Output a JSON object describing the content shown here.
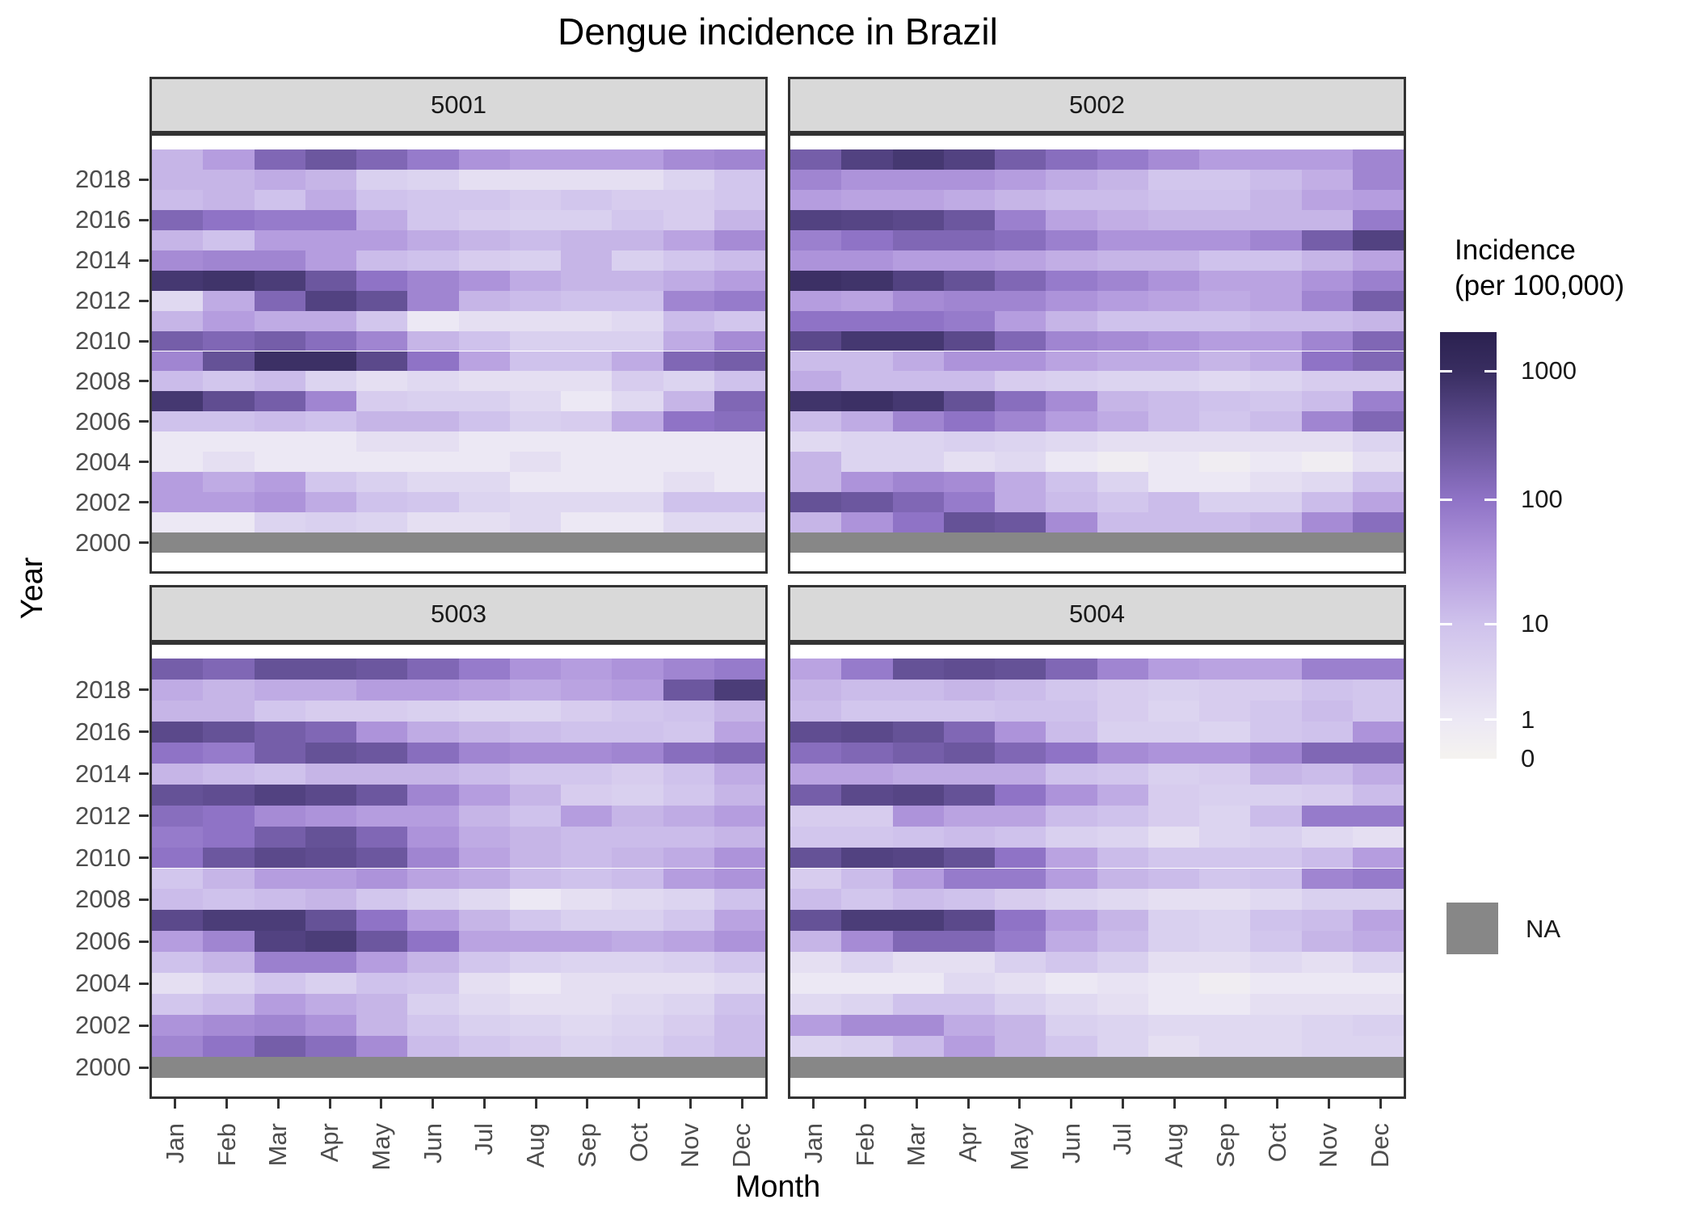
{
  "title": "Dengue incidence in Brazil",
  "axes": {
    "x_title": "Month",
    "y_title": "Year",
    "months": [
      "Jan",
      "Feb",
      "Mar",
      "Apr",
      "May",
      "Jun",
      "Jul",
      "Aug",
      "Sep",
      "Oct",
      "Nov",
      "Dec"
    ],
    "year_tick_labels": [
      "2018",
      "2016",
      "2014",
      "2012",
      "2010",
      "2008",
      "2006",
      "2004",
      "2002",
      "2000"
    ]
  },
  "legend": {
    "title_line1": "Incidence",
    "title_line2": "(per 100,000)",
    "tick_labels": [
      "1000",
      "100",
      "10",
      "1",
      "0"
    ],
    "tick_values": [
      1000,
      100,
      10,
      1,
      0
    ],
    "na_label": "NA"
  },
  "colors": {
    "na": "#878787",
    "strip_bg": "#d9d9d9",
    "panel_border": "#333333",
    "axis_text": "#4d4d4d",
    "scale_stops": [
      [
        0.0,
        "#f5f3f0"
      ],
      [
        0.0912,
        "#ece8f4"
      ],
      [
        0.3155,
        "#cfc2ec"
      ],
      [
        0.47,
        "#b298dd"
      ],
      [
        0.6072,
        "#8f73c6"
      ],
      [
        0.78,
        "#5d4b8e"
      ],
      [
        0.9089,
        "#382d60"
      ],
      [
        1.0,
        "#2b2150"
      ]
    ]
  },
  "chart_data": {
    "type": "heatmap",
    "title": "Dengue incidence in Brazil",
    "xlabel": "Month",
    "ylabel": "Year",
    "x": [
      "Jan",
      "Feb",
      "Mar",
      "Apr",
      "May",
      "Jun",
      "Jul",
      "Aug",
      "Sep",
      "Oct",
      "Nov",
      "Dec"
    ],
    "years": [
      2019,
      2018,
      2017,
      2016,
      2015,
      2014,
      2013,
      2012,
      2011,
      2010,
      2009,
      2008,
      2007,
      2006,
      2005,
      2004,
      2003,
      2002,
      2001,
      2000
    ],
    "scale": {
      "transform": "log10(x+1)",
      "vmax": 2000,
      "legend_ticks": [
        1000,
        100,
        10,
        1,
        0
      ],
      "na_year": 2000
    },
    "panels": [
      {
        "id": "5001",
        "values": [
          [
            15,
            30,
            150,
            250,
            150,
            80,
            40,
            30,
            30,
            30,
            50,
            60
          ],
          [
            15,
            15,
            20,
            15,
            5,
            4,
            2,
            2,
            2,
            2,
            4,
            8
          ],
          [
            12,
            15,
            10,
            20,
            10,
            8,
            8,
            6,
            8,
            6,
            6,
            8
          ],
          [
            150,
            100,
            80,
            80,
            20,
            8,
            6,
            5,
            5,
            8,
            6,
            15
          ],
          [
            15,
            10,
            30,
            30,
            30,
            20,
            15,
            12,
            15,
            15,
            25,
            50
          ],
          [
            50,
            60,
            60,
            30,
            12,
            10,
            6,
            5,
            15,
            5,
            8,
            12
          ],
          [
            700,
            800,
            600,
            250,
            100,
            60,
            40,
            20,
            15,
            15,
            20,
            30
          ],
          [
            3,
            20,
            150,
            500,
            300,
            60,
            15,
            12,
            10,
            10,
            60,
            80
          ],
          [
            15,
            30,
            20,
            20,
            8,
            1,
            2,
            2,
            2,
            3,
            12,
            8
          ],
          [
            200,
            150,
            200,
            120,
            60,
            15,
            10,
            5,
            5,
            5,
            20,
            50
          ],
          [
            60,
            300,
            900,
            900,
            400,
            100,
            25,
            10,
            10,
            20,
            150,
            200
          ],
          [
            12,
            8,
            12,
            4,
            2,
            3,
            2,
            2,
            2,
            6,
            4,
            10
          ],
          [
            700,
            350,
            200,
            60,
            6,
            5,
            5,
            3,
            1,
            3,
            15,
            150
          ],
          [
            10,
            10,
            12,
            10,
            15,
            15,
            10,
            5,
            6,
            20,
            100,
            120
          ],
          [
            1,
            1,
            1,
            1,
            2,
            2,
            1,
            1,
            1,
            1,
            1,
            1
          ],
          [
            1,
            2,
            1,
            1,
            1,
            1,
            1,
            2,
            1,
            1,
            1,
            1
          ],
          [
            30,
            20,
            30,
            8,
            5,
            3,
            3,
            1,
            1,
            1,
            2,
            1
          ],
          [
            30,
            30,
            40,
            20,
            10,
            8,
            4,
            3,
            3,
            3,
            10,
            10
          ],
          [
            1,
            1,
            4,
            5,
            4,
            2,
            2,
            3,
            1,
            1,
            3,
            3
          ],
          [
            null,
            null,
            null,
            null,
            null,
            null,
            null,
            null,
            null,
            null,
            null,
            null
          ]
        ]
      },
      {
        "id": "5002",
        "values": [
          [
            200,
            500,
            700,
            500,
            200,
            120,
            80,
            50,
            30,
            30,
            30,
            60
          ],
          [
            60,
            40,
            40,
            40,
            30,
            20,
            15,
            8,
            8,
            12,
            18,
            60
          ],
          [
            30,
            25,
            25,
            20,
            15,
            12,
            12,
            10,
            10,
            15,
            25,
            30
          ],
          [
            500,
            450,
            400,
            250,
            70,
            25,
            18,
            15,
            15,
            15,
            15,
            80
          ],
          [
            70,
            100,
            150,
            150,
            120,
            70,
            40,
            40,
            40,
            60,
            200,
            500
          ],
          [
            40,
            40,
            30,
            30,
            25,
            18,
            15,
            15,
            10,
            10,
            15,
            25
          ],
          [
            900,
            800,
            500,
            300,
            150,
            80,
            60,
            40,
            25,
            25,
            40,
            70
          ],
          [
            30,
            25,
            50,
            60,
            60,
            40,
            30,
            25,
            20,
            25,
            60,
            200
          ],
          [
            100,
            100,
            100,
            80,
            30,
            15,
            10,
            10,
            10,
            12,
            12,
            15
          ],
          [
            400,
            700,
            700,
            400,
            150,
            60,
            50,
            40,
            30,
            30,
            60,
            150
          ],
          [
            12,
            12,
            20,
            40,
            40,
            25,
            20,
            20,
            15,
            20,
            100,
            150
          ],
          [
            20,
            12,
            12,
            12,
            6,
            5,
            4,
            4,
            3,
            4,
            6,
            6
          ],
          [
            800,
            900,
            700,
            300,
            120,
            50,
            15,
            12,
            10,
            8,
            12,
            70
          ],
          [
            12,
            20,
            60,
            100,
            60,
            30,
            20,
            12,
            8,
            12,
            60,
            150
          ],
          [
            3,
            4,
            4,
            5,
            4,
            3,
            2,
            2,
            2,
            2,
            2,
            4
          ],
          [
            15,
            4,
            4,
            2,
            3,
            1,
            0.5,
            1,
            0.5,
            1,
            0.5,
            2
          ],
          [
            15,
            40,
            60,
            50,
            20,
            10,
            4,
            1,
            1,
            2,
            3,
            10
          ],
          [
            300,
            250,
            150,
            80,
            20,
            12,
            8,
            12,
            5,
            5,
            12,
            25
          ],
          [
            15,
            40,
            100,
            300,
            250,
            50,
            12,
            12,
            12,
            15,
            50,
            120
          ],
          [
            null,
            null,
            null,
            null,
            null,
            null,
            null,
            null,
            null,
            null,
            null,
            null
          ]
        ]
      },
      {
        "id": "5003",
        "values": [
          [
            200,
            150,
            300,
            300,
            250,
            150,
            80,
            40,
            30,
            40,
            60,
            80
          ],
          [
            20,
            15,
            20,
            20,
            30,
            30,
            25,
            20,
            25,
            30,
            250,
            600
          ],
          [
            15,
            15,
            8,
            6,
            6,
            5,
            4,
            4,
            6,
            8,
            10,
            15
          ],
          [
            400,
            300,
            200,
            150,
            40,
            20,
            15,
            12,
            10,
            10,
            8,
            25
          ],
          [
            100,
            80,
            200,
            300,
            250,
            120,
            60,
            50,
            50,
            60,
            120,
            150
          ],
          [
            15,
            12,
            10,
            15,
            15,
            15,
            12,
            8,
            8,
            6,
            10,
            20
          ],
          [
            300,
            350,
            500,
            400,
            250,
            60,
            30,
            15,
            6,
            5,
            8,
            15
          ],
          [
            120,
            100,
            50,
            40,
            30,
            30,
            15,
            10,
            30,
            15,
            20,
            30
          ],
          [
            80,
            100,
            200,
            300,
            150,
            40,
            20,
            15,
            12,
            12,
            12,
            15
          ],
          [
            100,
            250,
            400,
            350,
            250,
            60,
            25,
            15,
            12,
            15,
            20,
            40
          ],
          [
            8,
            15,
            30,
            30,
            40,
            25,
            20,
            12,
            10,
            12,
            30,
            40
          ],
          [
            12,
            10,
            12,
            15,
            8,
            5,
            3,
            1,
            2,
            3,
            4,
            10
          ],
          [
            400,
            600,
            600,
            300,
            100,
            30,
            15,
            8,
            5,
            5,
            8,
            25
          ],
          [
            30,
            60,
            500,
            600,
            250,
            100,
            25,
            25,
            25,
            20,
            25,
            40
          ],
          [
            10,
            15,
            70,
            70,
            30,
            15,
            8,
            5,
            4,
            4,
            5,
            8
          ],
          [
            2,
            4,
            8,
            5,
            10,
            8,
            2,
            1,
            2,
            2,
            2,
            3
          ],
          [
            8,
            12,
            30,
            20,
            15,
            5,
            3,
            2,
            2,
            3,
            4,
            10
          ],
          [
            40,
            50,
            60,
            40,
            15,
            8,
            5,
            4,
            3,
            4,
            6,
            12
          ],
          [
            60,
            100,
            200,
            120,
            50,
            12,
            8,
            6,
            4,
            5,
            8,
            12
          ],
          [
            null,
            null,
            null,
            null,
            null,
            null,
            null,
            null,
            null,
            null,
            null,
            null
          ]
        ]
      },
      {
        "id": "5004",
        "values": [
          [
            25,
            80,
            300,
            350,
            300,
            150,
            60,
            30,
            25,
            25,
            70,
            70
          ],
          [
            15,
            12,
            12,
            15,
            12,
            8,
            6,
            5,
            6,
            6,
            10,
            8
          ],
          [
            12,
            8,
            8,
            8,
            10,
            10,
            6,
            4,
            6,
            8,
            12,
            8
          ],
          [
            350,
            400,
            300,
            150,
            40,
            12,
            5,
            5,
            4,
            8,
            10,
            40
          ],
          [
            120,
            150,
            200,
            250,
            150,
            100,
            50,
            40,
            40,
            60,
            150,
            150
          ],
          [
            25,
            25,
            20,
            20,
            20,
            10,
            8,
            5,
            6,
            15,
            12,
            20
          ],
          [
            200,
            400,
            450,
            300,
            100,
            40,
            20,
            6,
            5,
            5,
            6,
            12
          ],
          [
            6,
            6,
            40,
            25,
            25,
            12,
            10,
            6,
            4,
            12,
            80,
            80
          ],
          [
            8,
            8,
            10,
            12,
            10,
            5,
            4,
            2,
            4,
            5,
            3,
            2
          ],
          [
            300,
            500,
            450,
            300,
            100,
            25,
            12,
            8,
            8,
            8,
            12,
            30
          ],
          [
            6,
            12,
            30,
            80,
            80,
            30,
            15,
            12,
            8,
            10,
            60,
            80
          ],
          [
            12,
            8,
            12,
            10,
            6,
            4,
            3,
            2,
            2,
            3,
            5,
            5
          ],
          [
            300,
            600,
            600,
            400,
            100,
            30,
            15,
            5,
            4,
            10,
            12,
            25
          ],
          [
            15,
            50,
            150,
            150,
            80,
            20,
            12,
            5,
            4,
            8,
            15,
            20
          ],
          [
            2,
            4,
            2,
            2,
            5,
            8,
            5,
            2,
            2,
            3,
            2,
            4
          ],
          [
            1,
            1,
            1,
            3,
            2,
            1,
            1.5,
            1,
            0.5,
            1,
            1,
            1
          ],
          [
            3,
            4,
            10,
            10,
            5,
            3,
            2,
            1,
            1,
            2,
            2,
            2
          ],
          [
            30,
            50,
            50,
            20,
            15,
            5,
            4,
            3,
            3,
            3,
            4,
            5
          ],
          [
            4,
            5,
            12,
            30,
            15,
            8,
            4,
            2,
            3,
            3,
            4,
            4
          ],
          [
            null,
            null,
            null,
            null,
            null,
            null,
            null,
            null,
            null,
            null,
            null,
            null
          ]
        ]
      }
    ]
  }
}
